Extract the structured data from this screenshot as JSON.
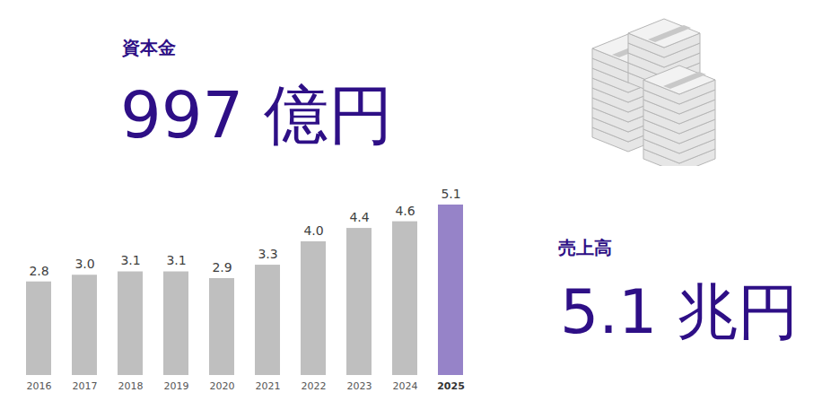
{
  "chart_data": {
    "type": "bar",
    "categories": [
      "2016",
      "2017",
      "2018",
      "2019",
      "2020",
      "2021",
      "2022",
      "2023",
      "2024",
      "2025"
    ],
    "values": [
      2.8,
      3.0,
      3.1,
      3.1,
      2.9,
      3.3,
      4.0,
      4.4,
      4.6,
      5.1
    ],
    "value_labels": [
      "2.8",
      "3.0",
      "3.1",
      "3.1",
      "2.9",
      "3.3",
      "4.0",
      "4.4",
      "4.6",
      "5.1"
    ],
    "colors": [
      "#bfbfbf",
      "#bfbfbf",
      "#bfbfbf",
      "#bfbfbf",
      "#bfbfbf",
      "#bfbfbf",
      "#bfbfbf",
      "#bfbfbf",
      "#bfbfbf",
      "#9683c8"
    ],
    "ylim": [
      0,
      5.1
    ],
    "yticks": [],
    "data_labels": true,
    "tick_labels": "x",
    "grid": false
  },
  "stats": [
    {
      "label": "資本金",
      "value": "997",
      "unit": "億円"
    },
    {
      "label": "売上高",
      "value": "5.1",
      "unit": "兆円"
    }
  ]
}
